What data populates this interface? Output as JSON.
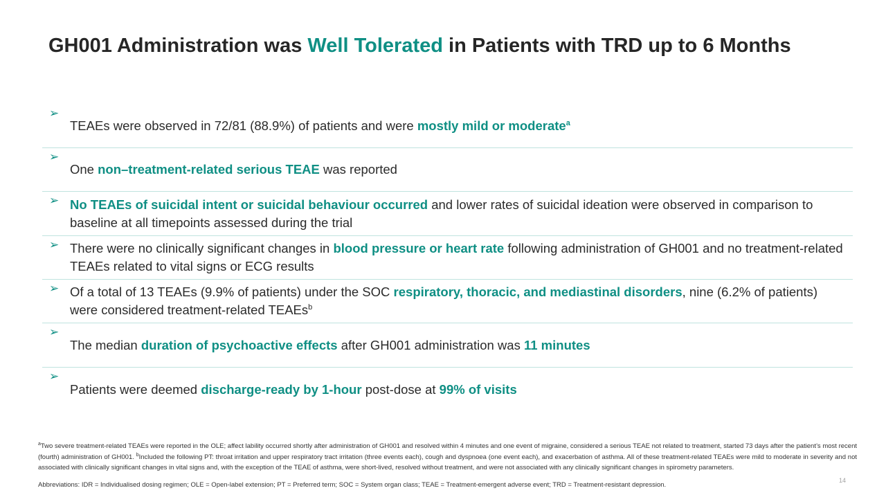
{
  "title": {
    "part1": "GH001 Administration was ",
    "highlight": "Well Tolerated",
    "part2": " in Patients with TRD up to 6 Months"
  },
  "bullets": [
    {
      "a": "TEAEs were observed in 72/81 (88.9%) of patients and were ",
      "b": "mostly mild or moderate",
      "sup": "a"
    },
    {
      "a": "One ",
      "b": "non–treatment-related serious TEAE",
      "c": " was reported"
    },
    {
      "b": "No TEAEs of suicidal intent or suicidal behaviour occurred",
      "c": " and lower rates of suicidal ideation were observed in comparison to baseline at all timepoints assessed during the trial"
    },
    {
      "a": "There were no clinically significant changes in ",
      "b": "blood pressure or heart rate",
      "c": " following administration of GH001 and no treatment-related TEAEs related to vital signs or ECG results"
    },
    {
      "a": "Of a total of 13 TEAEs (9.9% of patients) under the SOC ",
      "b": "respiratory, thoracic, and mediastinal disorders",
      "c": ", nine (6.2% of patients) were considered treatment-related TEAEs",
      "sup": "b"
    },
    {
      "a": "The median ",
      "b": "duration of psychoactive effects",
      "c": " after GH001 administration was ",
      "d": "11 minutes"
    },
    {
      "a": "Patients were deemed ",
      "b": "discharge-ready by 1-hour",
      "c": " post-dose at ",
      "d": "99% of visits"
    }
  ],
  "footnote": {
    "sup_a": "a",
    "text_a": "Two severe treatment-related TEAEs were reported in the OLE; affect lability occurred shortly after administration of GH001 and resolved within 4 minutes and one event of migraine, considered a serious TEAE not related to treatment, started 73 days after the patient’s most recent (fourth) administration of GH001. ",
    "sup_b": "b",
    "text_b": "Included the following PT: throat irritation and upper respiratory tract irritation (three events each), cough and dyspnoea (one event each), and exacerbation of asthma. All of these treatment-related TEAEs were mild to moderate in severity and not associated with clinically significant changes in vital signs and, with the exception of the TEAE of asthma, were short-lived, resolved without treatment, and were not associated with any clinically significant changes in spirometry parameters.",
    "abbreviations": "Abbreviations: IDR = Individualised dosing regimen; OLE = Open-label extension; PT = Preferred term; SOC = System organ class; TEAE = Treatment-emergent adverse event; TRD = Treatment-resistant depression."
  },
  "page_number": "14",
  "colors": {
    "accent": "#0f8f84",
    "divider": "#bfe3df"
  }
}
